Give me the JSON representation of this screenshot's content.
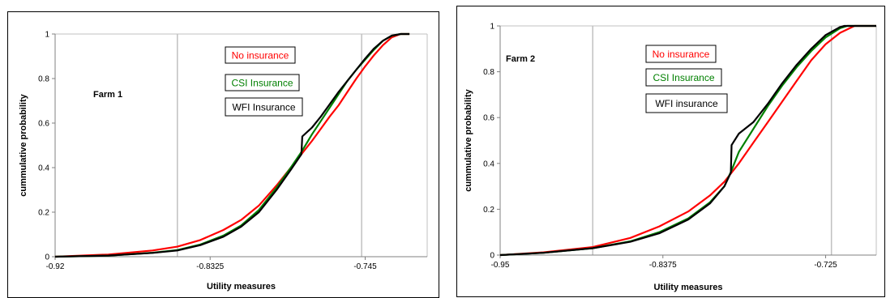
{
  "colors": {
    "no_insurance": "#ff0000",
    "csi": "#008000",
    "wfi": "#000000",
    "gridline": "#c0c0c0",
    "axis": "#808080"
  },
  "chart_data": [
    {
      "type": "line",
      "panel_label": "Farm 1",
      "xlabel": "Utility measures",
      "ylabel": "cummulative probability",
      "xlim": [
        -0.92,
        -0.71
      ],
      "ylim": [
        0,
        1
      ],
      "x_ticks": [
        "-0.92",
        "-0.8325",
        "-0.745"
      ],
      "x_tick_values": [
        -0.92,
        -0.8325,
        -0.745
      ],
      "y_ticks": [
        "0",
        "0.2",
        "0.4",
        "0.6",
        "0.8",
        "1"
      ],
      "vertical_reference_lines": [
        -0.851,
        -0.747
      ],
      "grid": false,
      "legend_position": "top-center",
      "series": [
        {
          "name": "No insurance",
          "color": "#ff0000",
          "x": [
            -0.92,
            -0.89,
            -0.865,
            -0.851,
            -0.838,
            -0.825,
            -0.815,
            -0.805,
            -0.795,
            -0.787,
            -0.781,
            -0.775,
            -0.77,
            -0.765,
            -0.76,
            -0.755,
            -0.75,
            -0.745,
            -0.74,
            -0.735,
            -0.73,
            -0.725,
            -0.72
          ],
          "y": [
            0.0,
            0.01,
            0.028,
            0.045,
            0.075,
            0.12,
            0.165,
            0.23,
            0.32,
            0.4,
            0.46,
            0.52,
            0.575,
            0.63,
            0.68,
            0.74,
            0.8,
            0.855,
            0.905,
            0.95,
            0.985,
            1.0,
            1.0
          ]
        },
        {
          "name": "CSI Insurance",
          "color": "#008000",
          "x": [
            -0.92,
            -0.89,
            -0.865,
            -0.851,
            -0.838,
            -0.825,
            -0.815,
            -0.805,
            -0.795,
            -0.787,
            -0.781,
            -0.775,
            -0.77,
            -0.765,
            -0.76,
            -0.755,
            -0.75,
            -0.745,
            -0.74,
            -0.735,
            -0.73,
            -0.725,
            -0.72
          ],
          "y": [
            0.0,
            0.005,
            0.018,
            0.03,
            0.055,
            0.095,
            0.14,
            0.21,
            0.31,
            0.4,
            0.47,
            0.55,
            0.61,
            0.67,
            0.73,
            0.79,
            0.84,
            0.885,
            0.93,
            0.97,
            0.992,
            1.0,
            1.0
          ]
        },
        {
          "name": "WFI Insurance",
          "color": "#000000",
          "x": [
            -0.92,
            -0.89,
            -0.865,
            -0.851,
            -0.838,
            -0.825,
            -0.815,
            -0.805,
            -0.795,
            -0.787,
            -0.781,
            -0.7805,
            -0.775,
            -0.77,
            -0.765,
            -0.76,
            -0.755,
            -0.75,
            -0.745,
            -0.74,
            -0.735,
            -0.73,
            -0.725,
            -0.72
          ],
          "y": [
            0.0,
            0.005,
            0.017,
            0.028,
            0.052,
            0.09,
            0.135,
            0.2,
            0.3,
            0.39,
            0.46,
            0.54,
            0.58,
            0.63,
            0.685,
            0.74,
            0.79,
            0.84,
            0.89,
            0.935,
            0.97,
            0.993,
            1.0,
            1.0
          ]
        }
      ]
    },
    {
      "type": "line",
      "panel_label": "Farm 2",
      "xlabel": "Utility measures",
      "ylabel": "cummulative probability",
      "xlim": [
        -0.95,
        -0.69
      ],
      "ylim": [
        0,
        1
      ],
      "x_ticks": [
        "-0.95",
        "-0.8375",
        "-0.725"
      ],
      "x_tick_values": [
        -0.95,
        -0.8375,
        -0.725
      ],
      "y_ticks": [
        "0",
        "0.2",
        "0.4",
        "0.6",
        "0.8",
        "1"
      ],
      "vertical_reference_lines": [
        -0.886,
        -0.721
      ],
      "grid": false,
      "legend_position": "top-center",
      "series": [
        {
          "name": "No insurance",
          "color": "#ff0000",
          "x": [
            -0.95,
            -0.92,
            -0.886,
            -0.86,
            -0.84,
            -0.82,
            -0.805,
            -0.795,
            -0.785,
            -0.775,
            -0.765,
            -0.755,
            -0.745,
            -0.735,
            -0.725,
            -0.715,
            -0.705,
            -0.69
          ],
          "y": [
            0.0,
            0.012,
            0.035,
            0.075,
            0.125,
            0.19,
            0.26,
            0.32,
            0.4,
            0.49,
            0.58,
            0.67,
            0.76,
            0.85,
            0.92,
            0.97,
            1.0,
            1.0
          ]
        },
        {
          "name": "CSI Insurance",
          "color": "#008000",
          "x": [
            -0.95,
            -0.92,
            -0.886,
            -0.86,
            -0.84,
            -0.82,
            -0.805,
            -0.795,
            -0.79,
            -0.785,
            -0.775,
            -0.765,
            -0.755,
            -0.745,
            -0.735,
            -0.725,
            -0.715,
            -0.71,
            -0.69
          ],
          "y": [
            0.0,
            0.01,
            0.03,
            0.06,
            0.1,
            0.16,
            0.23,
            0.3,
            0.37,
            0.45,
            0.55,
            0.65,
            0.74,
            0.82,
            0.89,
            0.95,
            0.99,
            1.0,
            1.0
          ]
        },
        {
          "name": "WFI insurance",
          "color": "#000000",
          "x": [
            -0.95,
            -0.92,
            -0.886,
            -0.86,
            -0.84,
            -0.82,
            -0.805,
            -0.795,
            -0.7905,
            -0.79,
            -0.785,
            -0.775,
            -0.765,
            -0.755,
            -0.745,
            -0.735,
            -0.725,
            -0.715,
            -0.712,
            -0.69
          ],
          "y": [
            0.0,
            0.01,
            0.03,
            0.058,
            0.095,
            0.155,
            0.225,
            0.3,
            0.36,
            0.48,
            0.53,
            0.58,
            0.66,
            0.75,
            0.83,
            0.9,
            0.96,
            0.995,
            1.0,
            1.0
          ]
        }
      ]
    }
  ]
}
